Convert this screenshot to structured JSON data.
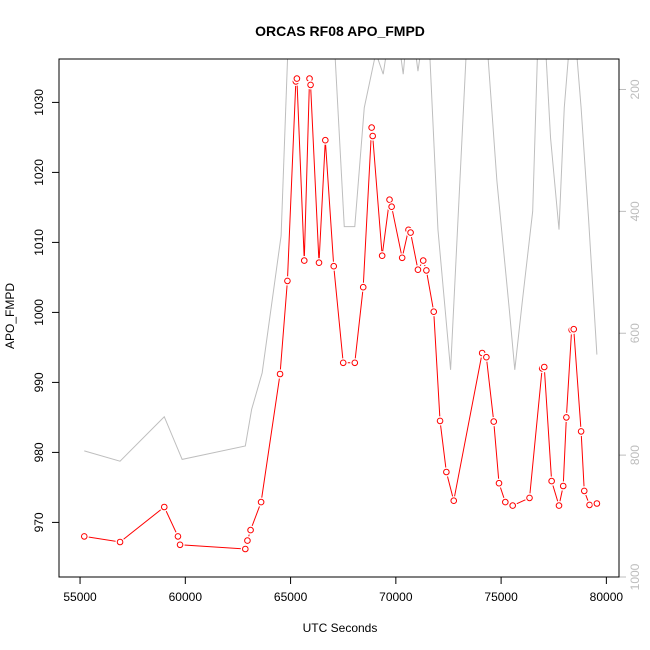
{
  "chart_data": {
    "type": "line",
    "title": "ORCAS RF08 APO_FMPD",
    "xlabel": "UTC Seconds",
    "ylabel": "APO_FMPD",
    "xlim": [
      54000,
      80600
    ],
    "ylim": [
      962.2,
      1036.2
    ],
    "y2lim": [
      1000,
      150
    ],
    "xticks": [
      55000,
      60000,
      65000,
      70000,
      75000,
      80000
    ],
    "yticks": [
      970,
      980,
      990,
      1000,
      1010,
      1020,
      1030
    ],
    "y2ticks": [
      200,
      400,
      600,
      800,
      1000
    ],
    "grid": false,
    "legend": "none",
    "colors": {
      "primary": "#ff0000",
      "secondary": "#bebebe",
      "axis": "#000000",
      "right_axis": "#bdbdbd"
    },
    "series": [
      {
        "values_x": [
          55200,
          56900,
          59000,
          59650,
          59750,
          62850,
          62950,
          63100,
          63600,
          64500,
          64850,
          65250,
          65300,
          65650,
          65900,
          65950,
          66350,
          66650,
          67050,
          67500,
          68050,
          68450,
          68850,
          68900,
          69350,
          69700,
          69800,
          70300,
          70600,
          70700,
          71050,
          71300,
          71450,
          71800,
          72100,
          72400,
          72750,
          74100,
          74300,
          74650,
          74900,
          75200,
          75550,
          76350,
          76950,
          77050,
          77400,
          77750,
          77950,
          78100,
          78350,
          78450,
          78800,
          78950,
          79200,
          79550
        ],
        "values_y": [
          968.0,
          967.2,
          972.2,
          968.0,
          966.8,
          966.2,
          967.4,
          968.9,
          972.9,
          991.2,
          1004.5,
          1033.0,
          1033.4,
          1007.4,
          1033.4,
          1032.5,
          1007.1,
          1024.6,
          1006.6,
          992.8,
          992.8,
          1003.6,
          1026.4,
          1025.2,
          1008.1,
          1016.1,
          1015.1,
          1007.8,
          1011.8,
          1011.4,
          1006.1,
          1007.4,
          1006.0,
          1000.1,
          984.5,
          977.2,
          973.1,
          994.2,
          993.6,
          984.4,
          975.6,
          972.9,
          972.4,
          973.5,
          992.0,
          992.2,
          975.9,
          972.4,
          975.2,
          985.0,
          997.5,
          997.6,
          983.0,
          974.5,
          972.5,
          972.7
        ]
      },
      {
        "values_x": [
          55200,
          56900,
          59000,
          59850,
          62850,
          63150,
          63650,
          64550,
          64950,
          65450,
          65800,
          66050,
          66550,
          66950,
          67550,
          68050,
          68500,
          69050,
          69400,
          69900,
          70350,
          70650,
          71050,
          71500,
          72000,
          72600,
          73400,
          74200,
          74800,
          75400,
          75650,
          76000,
          76500,
          76800,
          77000,
          77350,
          77750,
          78000,
          78400,
          78800,
          79150,
          79550
        ],
        "values_y2": [
          793,
          810,
          737,
          807,
          785,
          725,
          665,
          440,
          60,
          80,
          100,
          60,
          140,
          40,
          425,
          425,
          230,
          140,
          175,
          60,
          175,
          60,
          170,
          60,
          430,
          660,
          100,
          60,
          350,
          565,
          660,
          550,
          400,
          60,
          60,
          280,
          430,
          230,
          60,
          230,
          410,
          635
        ]
      }
    ]
  }
}
